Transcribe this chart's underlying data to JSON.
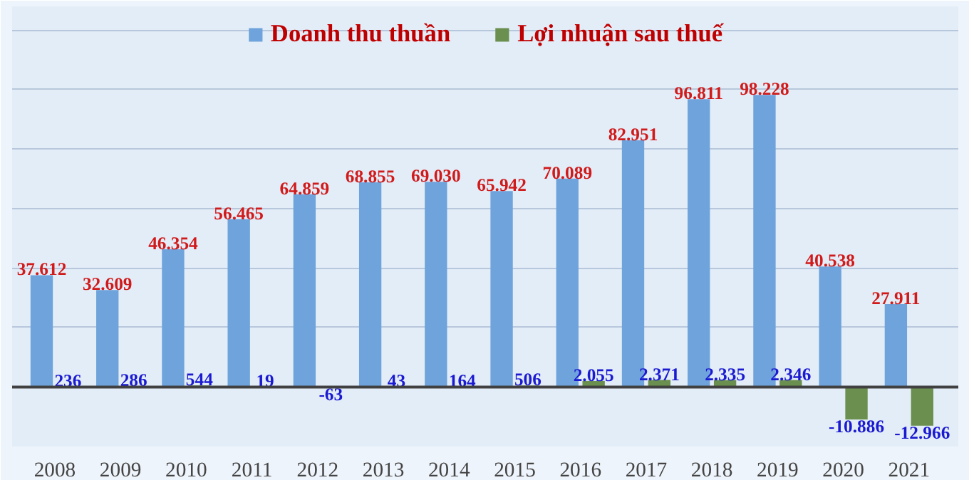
{
  "chart_data": {
    "type": "bar",
    "categories": [
      "2008",
      "2009",
      "2010",
      "2011",
      "2012",
      "2013",
      "2014",
      "2015",
      "2016",
      "2017",
      "2018",
      "2019",
      "2020",
      "2021"
    ],
    "series": [
      {
        "name": "Doanh thu thuần",
        "color": "#6fa3dc",
        "values": [
          37612,
          32609,
          46354,
          56465,
          64859,
          68855,
          69030,
          65942,
          70089,
          82951,
          96811,
          98228,
          40538,
          27911
        ],
        "value_labels": [
          "37.612",
          "32.609",
          "46.354",
          "56.465",
          "64.859",
          "68.855",
          "69.030",
          "65.942",
          "70.089",
          "82.951",
          "96.811",
          "98.228",
          "40.538",
          "27.911"
        ]
      },
      {
        "name": "Lợi nhuận sau thuế",
        "color": "#6a8f4e",
        "values": [
          236,
          286,
          544,
          19,
          -63,
          43,
          164,
          506,
          2055,
          2371,
          2335,
          2346,
          -10886,
          -12966
        ],
        "value_labels": [
          "236",
          "286",
          "544",
          "19",
          "-63",
          "43",
          "164",
          "506",
          "2.055",
          "2.371",
          "2.335",
          "2.346",
          "-10.886",
          "-12.966"
        ]
      }
    ],
    "ylim": [
      -20000,
      128000
    ],
    "yticks": [
      {
        "value": 0,
        "label": null
      },
      {
        "value": 20000,
        "label": null
      },
      {
        "value": 40000,
        "label": null
      },
      {
        "value": 60000,
        "label": null
      },
      {
        "value": 80000,
        "label": null
      },
      {
        "value": 100000,
        "label": null
      },
      {
        "value": 120000,
        "label": null
      }
    ],
    "grid": "y",
    "legend": "top",
    "tick_labels": "x"
  }
}
